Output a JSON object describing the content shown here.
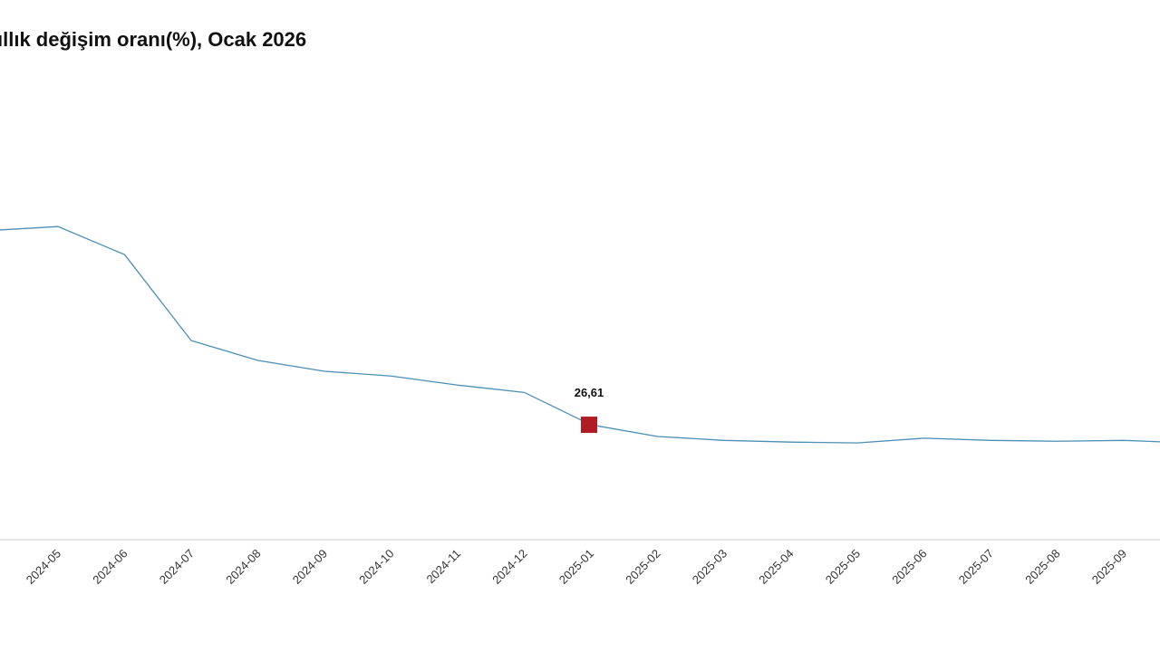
{
  "chart_data": {
    "type": "line",
    "title": "ıllık değişim oranı(%), Ocak 2026",
    "categories": [
      null,
      "2024-05",
      "2024-06",
      "2024-07",
      "2024-08",
      "2024-09",
      "2024-10",
      "2024-11",
      "2024-12",
      "2025-01",
      "2025-02",
      "2025-03",
      "2025-04",
      "2025-05",
      "2025-06",
      "2025-07",
      "2025-08",
      "2025-09",
      null
    ],
    "series": [
      {
        "color": "#4a8fb5",
        "values": [
          71.6,
          72.5,
          66.0,
          46.1,
          41.5,
          39.0,
          37.9,
          35.8,
          34.1,
          26.61,
          23.9,
          23.0,
          22.6,
          22.4,
          23.5,
          23.0,
          22.8,
          23.0,
          22.4
        ],
        "value_labels": [
          null,
          null,
          null,
          null,
          null,
          null,
          null,
          null,
          null,
          "26,61",
          null,
          null,
          null,
          null,
          null,
          null,
          null,
          null,
          null
        ],
        "highlight_color": "#b01c23"
      }
    ],
    "ylim": [
      0,
      100
    ]
  }
}
